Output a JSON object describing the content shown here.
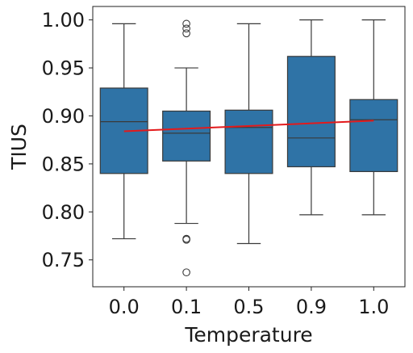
{
  "chart_data": {
    "type": "box",
    "xlabel": "Temperature",
    "ylabel": "TIUS",
    "ylim": [
      0.722,
      1.014
    ],
    "yticks": [
      0.75,
      0.8,
      0.85,
      0.9,
      0.95,
      1.0
    ],
    "ytick_labels": [
      "0.75",
      "0.80",
      "0.85",
      "0.90",
      "0.95",
      "1.00"
    ],
    "grid": false,
    "legend": "none",
    "colors": {
      "box": "#2f73a6",
      "box_edge": "#3a3a3a",
      "trend": "#e31a1c"
    },
    "boxes": [
      {
        "category": "0.0",
        "whisker_low": 0.772,
        "q1": 0.84,
        "median": 0.894,
        "q3": 0.929,
        "whisker_high": 0.996,
        "outliers": []
      },
      {
        "category": "0.1",
        "whisker_low": 0.788,
        "q1": 0.853,
        "median": 0.882,
        "q3": 0.905,
        "whisker_high": 0.95,
        "outliers": [
          0.996,
          0.991,
          0.986,
          0.772,
          0.771,
          0.737
        ]
      },
      {
        "category": "0.5",
        "whisker_low": 0.767,
        "q1": 0.84,
        "median": 0.888,
        "q3": 0.906,
        "whisker_high": 0.996,
        "outliers": []
      },
      {
        "category": "0.9",
        "whisker_low": 0.797,
        "q1": 0.847,
        "median": 0.877,
        "q3": 0.962,
        "whisker_high": 1.0,
        "outliers": []
      },
      {
        "category": "1.0",
        "whisker_low": 0.797,
        "q1": 0.842,
        "median": 0.896,
        "q3": 0.917,
        "whisker_high": 1.0,
        "outliers": []
      }
    ],
    "trend_line": {
      "x_start": "0.0",
      "y_start": 0.884,
      "x_end": "1.0",
      "y_end": 0.895
    }
  }
}
